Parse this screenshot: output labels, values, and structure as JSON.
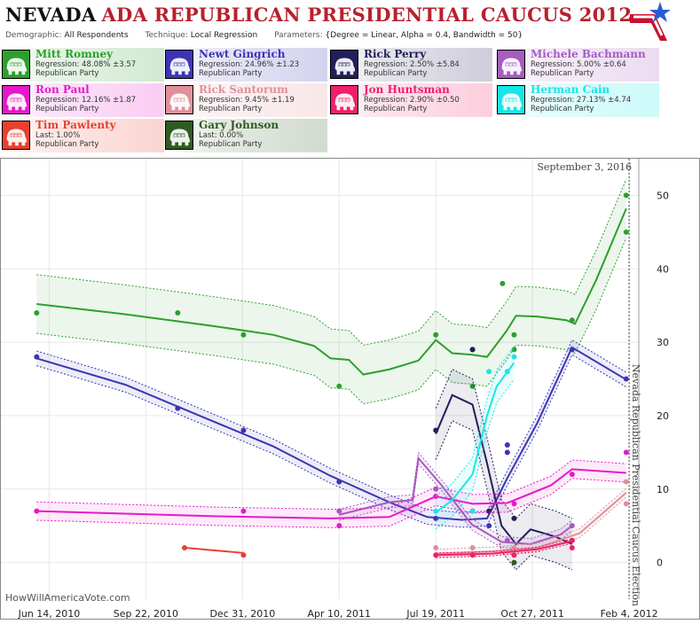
{
  "header": {
    "title_main": "NEVADA",
    "title_rest": "ADA REPUBLICAN PRESIDENTIAL CAUCUS 2012",
    "demographic_label": "Demographic:",
    "demographic_value": "All Respondents",
    "technique_label": "Technique:",
    "technique_value": "Local Regression",
    "parameters_label": "Parameters:",
    "parameters_value": "{Degree = Linear, Alpha = 0.4, Bandwidth = 50}"
  },
  "logo": {
    "icon": "star-flag-logo",
    "colors": [
      "#c8102e",
      "#2a5bd7"
    ]
  },
  "candidates": [
    {
      "name": "Mitt Romney",
      "stat": "Regression: 48.08% ±3.57",
      "party": "Republican Party",
      "color": "#2ca02c"
    },
    {
      "name": "Newt Gingrich",
      "stat": "Regression: 24.96% ±1.23",
      "party": "Republican Party",
      "color": "#3b35b5"
    },
    {
      "name": "Rick Perry",
      "stat": "Regression: 2.50% ±5.84",
      "party": "Republican Party",
      "color": "#22205a"
    },
    {
      "name": "Michele Bachmann",
      "stat": "Regression: 5.00% ±0.64",
      "party": "Republican Party",
      "color": "#a65cc0"
    },
    {
      "name": "Ron Paul",
      "stat": "Regression: 12.16% ±1.87",
      "party": "Republican Party",
      "color": "#e619c9"
    },
    {
      "name": "Rick Santorum",
      "stat": "Regression: 9.45% ±1.19",
      "party": "Republican Party",
      "color": "#e0909a"
    },
    {
      "name": "Jon Huntsman",
      "stat": "Regression: 2.90% ±0.50",
      "party": "Republican Party",
      "color": "#f0206a"
    },
    {
      "name": "Herman Cain",
      "stat": "Regression: 27.13% ±4.74",
      "party": "Republican Party",
      "color": "#18e6e6"
    },
    {
      "name": "Tim Pawlenty",
      "stat": "Last: 1.00%",
      "party": "Republican Party",
      "color": "#e8402e"
    },
    {
      "name": "Gary Johnson",
      "stat": "Last: 0.00%",
      "party": "Republican Party",
      "color": "#2f5a22"
    }
  ],
  "chart_data": {
    "type": "line",
    "annotation_date": "September 3, 2016",
    "election_label": "Nevada Republican Presidential Caucus Election",
    "watermark": "HowWillAmericaVote.com",
    "x_ticks": [
      "Jun 14, 2010",
      "Sep 22, 2010",
      "Dec 31, 2010",
      "Apr 10, 2011",
      "Jul 19, 2011",
      "Oct 27, 2011",
      "Feb 4, 2012"
    ],
    "x_range": [
      "2010-04-25",
      "2012-02-14"
    ],
    "election_date": "2012-02-04",
    "y_ticks": [
      0,
      10,
      20,
      30,
      40,
      50
    ],
    "ylim": [
      -5,
      55
    ],
    "grid": true,
    "series": [
      {
        "name": "Mitt Romney",
        "color": "#2ca02c",
        "points": [
          [
            "2010-06-01",
            34
          ],
          [
            "2010-10-25",
            34
          ],
          [
            "2011-01-01",
            31
          ],
          [
            "2011-04-10",
            24
          ],
          [
            "2011-07-19",
            31
          ],
          [
            "2011-08-26",
            24
          ],
          [
            "2011-09-26",
            38
          ],
          [
            "2011-10-08",
            31
          ],
          [
            "2011-10-08",
            29
          ],
          [
            "2011-12-07",
            33
          ],
          [
            "2012-02-01",
            45
          ],
          [
            "2012-02-01",
            50
          ]
        ],
        "trend": [
          [
            "2010-06-01",
            35.2
          ],
          [
            "2010-09-01",
            33.8
          ],
          [
            "2010-12-01",
            32.2
          ],
          [
            "2011-02-01",
            31.0
          ],
          [
            "2011-03-15",
            29.5
          ],
          [
            "2011-04-01",
            27.8
          ],
          [
            "2011-04-20",
            27.6
          ],
          [
            "2011-05-05",
            25.6
          ],
          [
            "2011-06-01",
            26.3
          ],
          [
            "2011-07-01",
            27.5
          ],
          [
            "2011-07-19",
            30.3
          ],
          [
            "2011-08-05",
            28.5
          ],
          [
            "2011-08-25",
            28.3
          ],
          [
            "2011-09-10",
            28.0
          ],
          [
            "2011-09-30",
            31.5
          ],
          [
            "2011-10-10",
            33.6
          ],
          [
            "2011-11-01",
            33.5
          ],
          [
            "2011-12-01",
            33.0
          ],
          [
            "2011-12-10",
            32.5
          ],
          [
            "2012-01-01",
            38.5
          ],
          [
            "2012-02-01",
            48.2
          ]
        ],
        "band": 8
      },
      {
        "name": "Newt Gingrich",
        "color": "#3b35b5",
        "points": [
          [
            "2010-06-01",
            28
          ],
          [
            "2010-10-25",
            21
          ],
          [
            "2011-01-01",
            18
          ],
          [
            "2011-04-10",
            11
          ],
          [
            "2011-07-19",
            6
          ],
          [
            "2011-08-26",
            29
          ],
          [
            "2011-09-12",
            5
          ],
          [
            "2011-10-01",
            15
          ],
          [
            "2011-10-01",
            16
          ],
          [
            "2011-12-07",
            29
          ],
          [
            "2012-02-01",
            25
          ]
        ],
        "trend": [
          [
            "2010-06-01",
            27.8
          ],
          [
            "2010-09-01",
            24.2
          ],
          [
            "2010-12-01",
            19.2
          ],
          [
            "2011-02-01",
            15.8
          ],
          [
            "2011-04-01",
            11.8
          ],
          [
            "2011-06-01",
            8.2
          ],
          [
            "2011-07-10",
            6.2
          ],
          [
            "2011-08-15",
            5.8
          ],
          [
            "2011-09-10",
            6.0
          ],
          [
            "2011-10-01",
            11.5
          ],
          [
            "2011-11-01",
            19.0
          ],
          [
            "2011-12-07",
            29.3
          ],
          [
            "2012-02-01",
            24.9
          ]
        ],
        "band": 2
      },
      {
        "name": "Rick Perry",
        "color": "#22205a",
        "points": [
          [
            "2011-07-19",
            18
          ],
          [
            "2011-08-26",
            29
          ],
          [
            "2011-09-12",
            7
          ],
          [
            "2011-10-08",
            6
          ],
          [
            "2011-12-07",
            3
          ]
        ],
        "trend": [
          [
            "2011-07-19",
            17.5
          ],
          [
            "2011-08-05",
            22.8
          ],
          [
            "2011-08-26",
            21.5
          ],
          [
            "2011-09-10",
            13.5
          ],
          [
            "2011-09-25",
            5.0
          ],
          [
            "2011-10-10",
            2.5
          ],
          [
            "2011-10-25",
            4.5
          ],
          [
            "2011-11-20",
            3.5
          ],
          [
            "2011-12-07",
            2.5
          ]
        ],
        "band": 7
      },
      {
        "name": "Michele Bachmann",
        "color": "#a65cc0",
        "points": [
          [
            "2011-04-10",
            7
          ],
          [
            "2011-07-19",
            10
          ],
          [
            "2011-08-26",
            7
          ],
          [
            "2011-10-01",
            3
          ],
          [
            "2011-12-07",
            5
          ]
        ],
        "trend": [
          [
            "2011-04-10",
            6.5
          ],
          [
            "2011-06-01",
            8.2
          ],
          [
            "2011-06-25",
            8.5
          ],
          [
            "2011-07-01",
            14.2
          ],
          [
            "2011-07-25",
            10.5
          ],
          [
            "2011-08-25",
            5.2
          ],
          [
            "2011-09-25",
            2.8
          ],
          [
            "2011-10-25",
            2.5
          ],
          [
            "2011-11-25",
            3.8
          ],
          [
            "2011-12-07",
            5.0
          ]
        ],
        "band": 1.5
      },
      {
        "name": "Ron Paul",
        "color": "#e619c9",
        "points": [
          [
            "2010-06-01",
            7
          ],
          [
            "2011-01-01",
            7
          ],
          [
            "2011-04-10",
            5
          ],
          [
            "2011-07-19",
            9
          ],
          [
            "2011-08-26",
            7
          ],
          [
            "2011-10-08",
            8
          ],
          [
            "2011-12-07",
            12
          ],
          [
            "2012-02-01",
            15
          ]
        ],
        "trend": [
          [
            "2010-06-01",
            7.0
          ],
          [
            "2010-12-01",
            6.3
          ],
          [
            "2011-04-01",
            6.0
          ],
          [
            "2011-06-01",
            6.2
          ],
          [
            "2011-07-19",
            9.0
          ],
          [
            "2011-08-26",
            8.0
          ],
          [
            "2011-10-01",
            8.1
          ],
          [
            "2011-11-15",
            10.5
          ],
          [
            "2011-12-07",
            12.7
          ],
          [
            "2012-02-01",
            12.2
          ]
        ],
        "band": 2.5
      },
      {
        "name": "Rick Santorum",
        "color": "#e0909a",
        "points": [
          [
            "2011-07-19",
            2
          ],
          [
            "2011-08-26",
            2
          ],
          [
            "2011-10-08",
            2
          ],
          [
            "2011-12-07",
            3
          ],
          [
            "2012-02-01",
            8
          ],
          [
            "2012-02-01",
            11
          ]
        ],
        "trend": [
          [
            "2011-07-19",
            1.2
          ],
          [
            "2011-09-15",
            1.5
          ],
          [
            "2011-11-01",
            2.0
          ],
          [
            "2011-12-15",
            4.0
          ],
          [
            "2012-02-01",
            9.5
          ]
        ],
        "band": 1.2
      },
      {
        "name": "Jon Huntsman",
        "color": "#f0206a",
        "points": [
          [
            "2011-07-19",
            1
          ],
          [
            "2011-08-26",
            1
          ],
          [
            "2011-10-08",
            1
          ],
          [
            "2011-12-07",
            2
          ],
          [
            "2011-12-07",
            3
          ]
        ],
        "trend": [
          [
            "2011-07-19",
            1.0
          ],
          [
            "2011-09-15",
            1.2
          ],
          [
            "2011-11-01",
            1.8
          ],
          [
            "2011-12-07",
            2.9
          ]
        ],
        "band": 0.6
      },
      {
        "name": "Herman Cain",
        "color": "#18e6e6",
        "points": [
          [
            "2011-07-19",
            7
          ],
          [
            "2011-08-26",
            7
          ],
          [
            "2011-09-12",
            26
          ],
          [
            "2011-10-01",
            26
          ],
          [
            "2011-10-08",
            28
          ]
        ],
        "trend": [
          [
            "2011-07-19",
            6.8
          ],
          [
            "2011-08-05",
            8.5
          ],
          [
            "2011-08-26",
            12.0
          ],
          [
            "2011-09-10",
            20.0
          ],
          [
            "2011-09-20",
            24.0
          ],
          [
            "2011-10-08",
            27.2
          ]
        ],
        "band": 4.5
      },
      {
        "name": "Tim Pawlenty",
        "color": "#e8402e",
        "points": [
          [
            "2010-11-01",
            2
          ],
          [
            "2011-01-01",
            1
          ]
        ],
        "trend": [
          [
            "2010-11-01",
            2.0
          ],
          [
            "2011-01-01",
            1.3
          ]
        ],
        "band": 0
      },
      {
        "name": "Gary Johnson",
        "color": "#2f5a22",
        "points": [
          [
            "2011-10-08",
            0
          ]
        ],
        "trend": [],
        "band": 0
      }
    ]
  }
}
